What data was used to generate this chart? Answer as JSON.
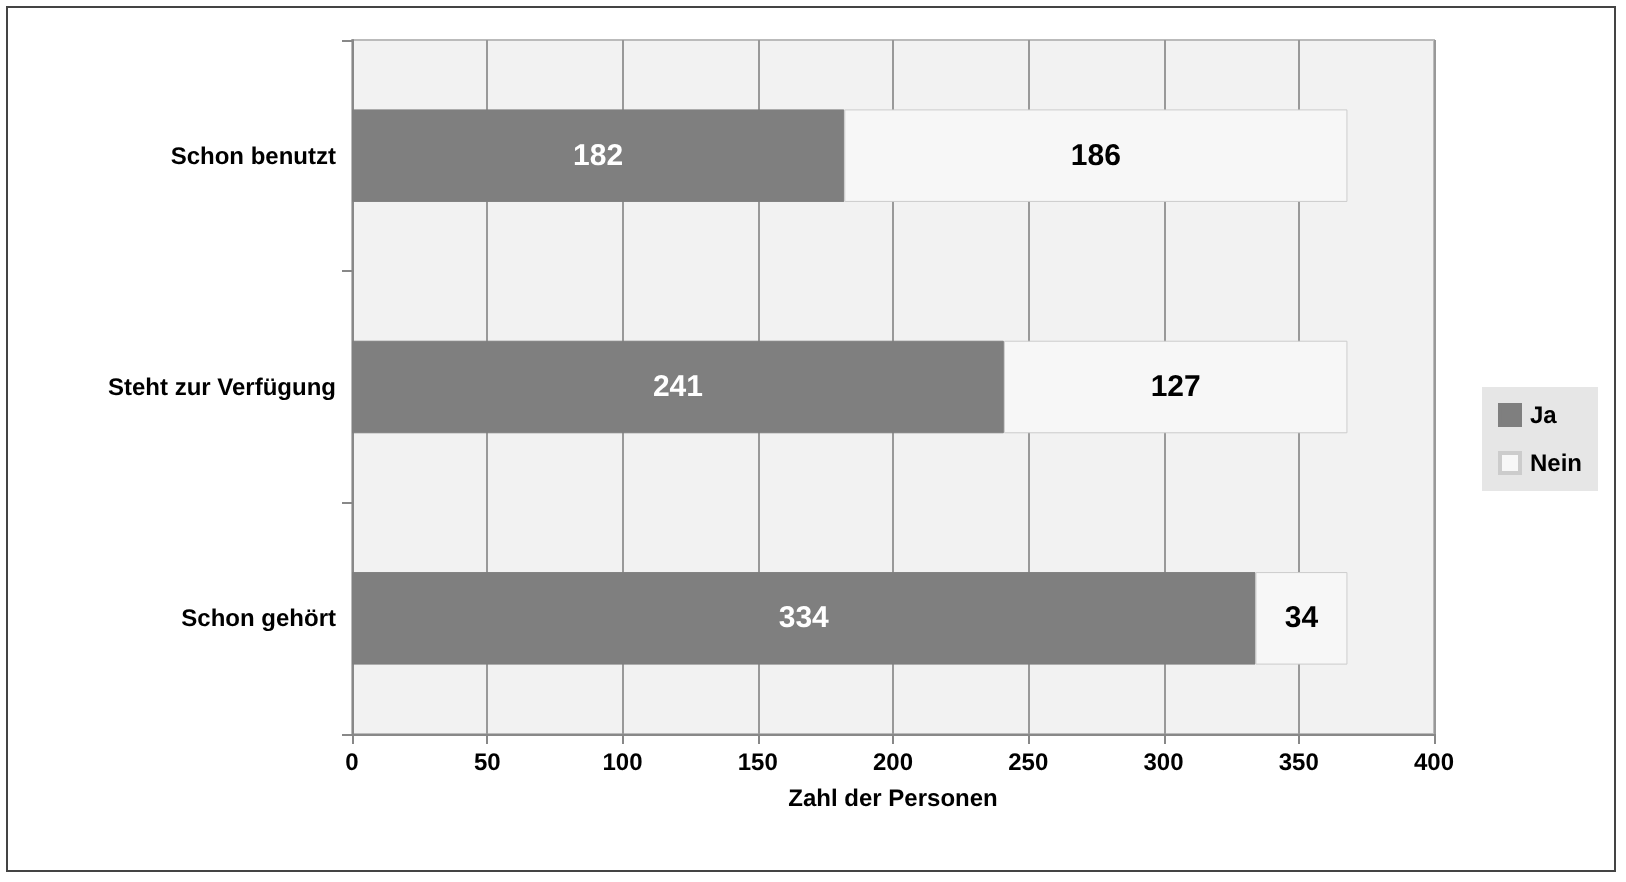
{
  "chart_data": {
    "type": "bar",
    "orientation": "horizontal",
    "stacked": true,
    "categories": [
      "Schon benutzt",
      "Steht zur Verfügung",
      "Schon gehört"
    ],
    "series": [
      {
        "name": "Ja",
        "color": "#7f7f7f",
        "values": [
          182,
          241,
          334
        ]
      },
      {
        "name": "Nein",
        "color": "#f7f7f7",
        "values": [
          186,
          127,
          34
        ]
      }
    ],
    "xlabel": "Zahl der Personen",
    "xlim": [
      0,
      400
    ],
    "xticks": [
      0,
      50,
      100,
      150,
      200,
      250,
      300,
      350,
      400
    ],
    "grid": "x",
    "legend": "right",
    "data_labels": true
  }
}
